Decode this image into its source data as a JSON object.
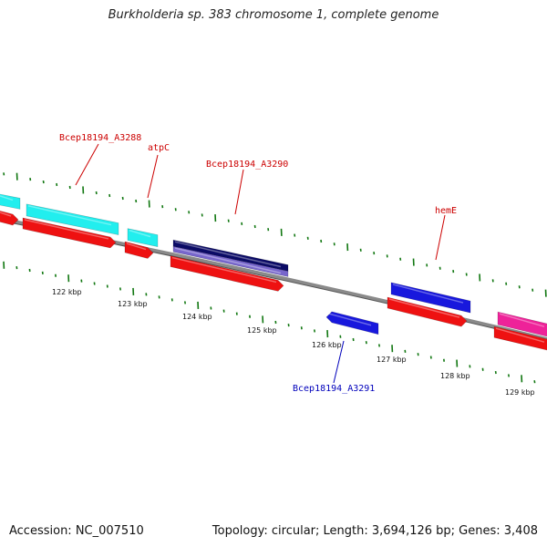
{
  "title": "Burkholderia sp. 383 chromosome 1, complete genome",
  "footer": {
    "accession": "Accession: NC_007510",
    "summary": "Topology: circular; Length: 3,694,126 bp; Genes: 3,408"
  },
  "colors": {
    "backbone": "#777777",
    "cds_red": "#ee1111",
    "cyan": "#22eeee",
    "navy": "#0b0b66",
    "lavender": "#7766cc",
    "blue": "#1818dd",
    "magenta": "#ee2299",
    "tick_green": "#117711",
    "label_red": "#cc0000",
    "label_blue": "#0000bb"
  },
  "scale_labels": [
    "122 kbp",
    "123 kbp",
    "124 kbp",
    "125 kbp",
    "126 kbp",
    "127 kbp",
    "128 kbp",
    "129 kbp"
  ],
  "gene_labels": [
    {
      "text": "Bcep18194_A3288",
      "color": "label_red"
    },
    {
      "text": "atpC",
      "color": "label_red"
    },
    {
      "text": "Bcep18194_A3290",
      "color": "label_red"
    },
    {
      "text": "hemE",
      "color": "label_red"
    },
    {
      "text": "Bcep18194_A3291",
      "color": "label_blue"
    }
  ]
}
